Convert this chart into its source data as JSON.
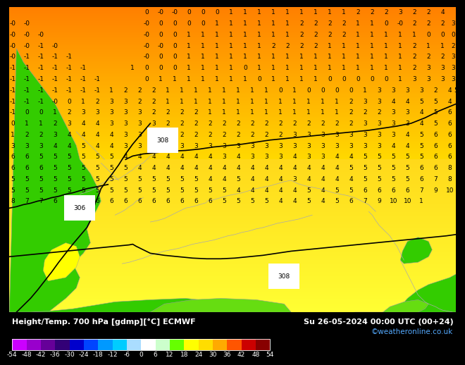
{
  "title_left": "Height/Temp. 700 hPa [gdmp][°C] ECMWF",
  "title_right": "Su 26-05-2024 00:00 UTC (00+24)",
  "credit": "©weatheronline.co.uk",
  "colorbar_values": [
    -54,
    -48,
    -42,
    -36,
    -30,
    -24,
    -18,
    -12,
    -6,
    0,
    6,
    12,
    18,
    24,
    30,
    36,
    42,
    48,
    54
  ],
  "colorbar_colors": [
    "#cc00ff",
    "#9900cc",
    "#660099",
    "#330077",
    "#0000cc",
    "#0044ff",
    "#0099ff",
    "#00ccff",
    "#aaddff",
    "#ffffff",
    "#ccffcc",
    "#66ff00",
    "#ffff00",
    "#ffdd00",
    "#ffaa00",
    "#ff5500",
    "#cc0000",
    "#880000"
  ],
  "fig_width": 6.34,
  "fig_height": 4.9,
  "colorbar_label_fontsize": 6.5,
  "title_fontsize": 8.0,
  "credit_fontsize": 7.5
}
